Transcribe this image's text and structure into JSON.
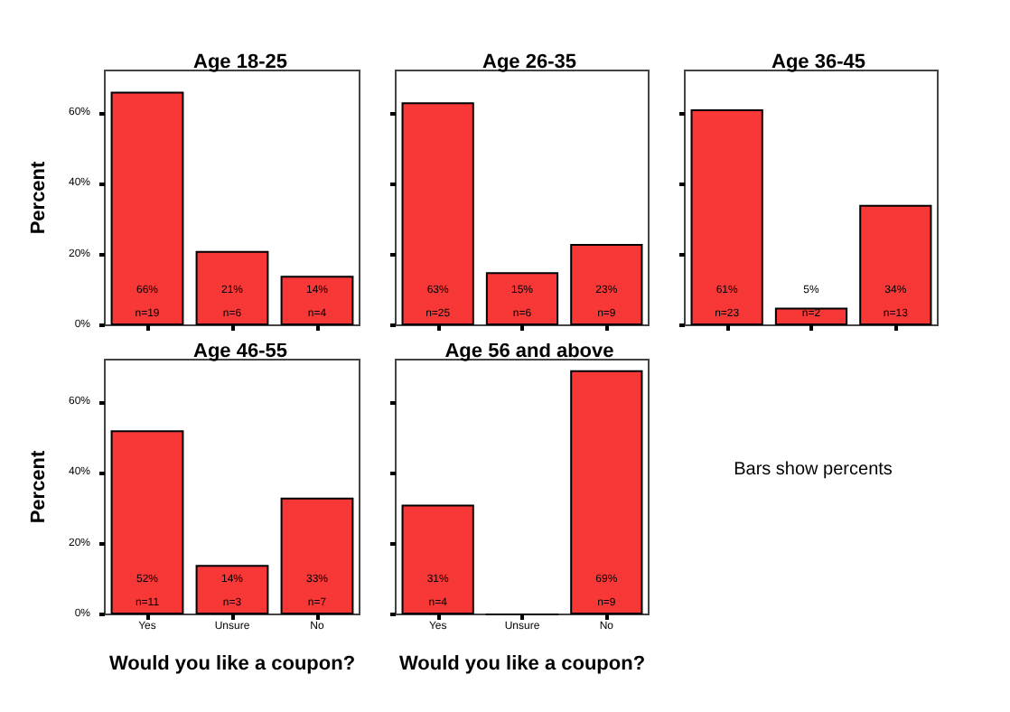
{
  "chart_data": [
    {
      "type": "bar",
      "title": "Age 18-25",
      "ylabel": "Percent",
      "categories": [
        null,
        null,
        null
      ],
      "color": "#f83737",
      "values": [
        66,
        21,
        14
      ],
      "value_labels": [
        "66%",
        "21%",
        "14%"
      ],
      "annotations": [
        "n=19",
        "n=6",
        "n=4"
      ],
      "ylim": [
        0,
        72
      ],
      "yticks": [
        {
          "value": 0,
          "label": "0%"
        },
        {
          "value": 20,
          "label": "20%"
        },
        {
          "value": 40,
          "label": "40%"
        },
        {
          "value": 60,
          "label": "60%"
        }
      ],
      "tick_labels": "y"
    },
    {
      "type": "bar",
      "title": "Age 26-35",
      "categories": [
        null,
        null,
        null
      ],
      "color": "#f83737",
      "values": [
        63,
        15,
        23
      ],
      "value_labels": [
        "63%",
        "15%",
        "23%"
      ],
      "annotations": [
        "n=25",
        "n=6",
        "n=9"
      ],
      "ylim": [
        0,
        72
      ],
      "yticks": [
        {
          "value": 0,
          "label": null
        },
        {
          "value": 20,
          "label": null
        },
        {
          "value": 40,
          "label": null
        },
        {
          "value": 60,
          "label": null
        }
      ]
    },
    {
      "type": "bar",
      "title": "Age 36-45",
      "categories": [
        null,
        null,
        null
      ],
      "color": "#f83737",
      "values": [
        61,
        5,
        34
      ],
      "value_labels": [
        "61%",
        "5%",
        "34%"
      ],
      "annotations": [
        "n=23",
        "n=2",
        "n=13"
      ],
      "ylim": [
        0,
        72
      ],
      "yticks": [
        {
          "value": 0,
          "label": null
        },
        {
          "value": 20,
          "label": null
        },
        {
          "value": 40,
          "label": null
        },
        {
          "value": 60,
          "label": null
        }
      ]
    },
    {
      "type": "bar",
      "title": "Age 46-55",
      "xlabel": "Would you like a coupon?",
      "ylabel": "Percent",
      "categories": [
        "Yes",
        "Unsure",
        "No"
      ],
      "color": "#f83737",
      "values": [
        52,
        14,
        33
      ],
      "value_labels": [
        "52%",
        "14%",
        "33%"
      ],
      "annotations": [
        "n=11",
        "n=3",
        "n=7"
      ],
      "ylim": [
        0,
        72
      ],
      "yticks": [
        {
          "value": 0,
          "label": "0%"
        },
        {
          "value": 20,
          "label": "20%"
        },
        {
          "value": 40,
          "label": "40%"
        },
        {
          "value": 60,
          "label": "60%"
        }
      ]
    },
    {
      "type": "bar",
      "title": "Age 56 and above",
      "xlabel": "Would you like a coupon?",
      "categories": [
        "Yes",
        "Unsure",
        "No"
      ],
      "color": "#f83737",
      "values": [
        31,
        0,
        69
      ],
      "value_labels": [
        "31%",
        null,
        "69%"
      ],
      "annotations": [
        "n=4",
        null,
        "n=9"
      ],
      "ylim": [
        0,
        72
      ],
      "yticks": [
        {
          "value": 0,
          "label": null
        },
        {
          "value": 20,
          "label": null
        },
        {
          "value": 40,
          "label": null
        },
        {
          "value": 60,
          "label": null
        }
      ]
    },
    {
      "type": "other",
      "annotations": [
        "Bars show percents"
      ]
    }
  ]
}
